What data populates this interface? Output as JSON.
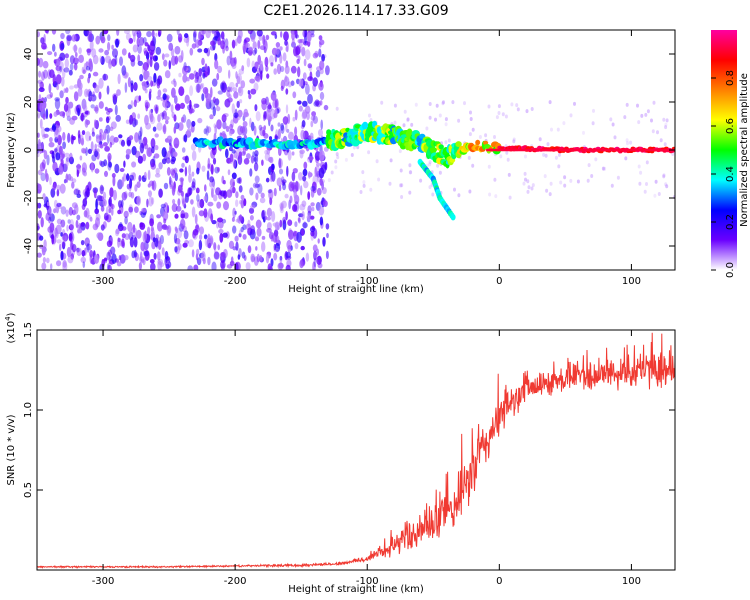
{
  "figure_title": "C2E1.2026.114.17.33.G09",
  "chart_data": [
    {
      "type": "heatmap",
      "title": "C2E1.2026.114.17.33.G09",
      "xlabel": "Height of straight line (km)",
      "ylabel": "Frequency (Hz)",
      "xlim": [
        -350,
        133
      ],
      "ylim": [
        -50,
        50
      ],
      "xticks": [
        -300,
        -200,
        -100,
        0,
        100
      ],
      "yticks": [
        -40,
        -20,
        0,
        20,
        40
      ],
      "colorbar": {
        "label": "Normalized spectral amplitude",
        "range": [
          0.0,
          1.0
        ],
        "ticks": [
          "0.0",
          "0.2",
          "0.4",
          "0.6",
          "0.8"
        ],
        "colors": [
          "#ffffff",
          "#6a00ff",
          "#0000ff",
          "#00ffff",
          "#00ff00",
          "#ffff00",
          "#ff8000",
          "#ff0000",
          "#ff00a0"
        ]
      },
      "features": [
        {
          "name": "broadband noise",
          "x_range": [
            -350,
            -130
          ],
          "freq_range": [
            -50,
            50
          ],
          "amplitude": 0.15
        },
        {
          "name": "meteor head echo track",
          "points": [
            [
              -230,
              3
            ],
            [
              -200,
              3
            ],
            [
              -150,
              2
            ],
            [
              -120,
              5
            ],
            [
              -100,
              8
            ],
            [
              -80,
              6
            ],
            [
              -60,
              3
            ],
            [
              -40,
              -3
            ],
            [
              -20,
              2
            ],
            [
              0,
              1
            ],
            [
              50,
              0
            ],
            [
              133,
              0
            ]
          ],
          "amplitude_range": [
            0.3,
            1.0
          ]
        },
        {
          "name": "descending branch",
          "points": [
            [
              -60,
              -5
            ],
            [
              -50,
              -12
            ],
            [
              -45,
              -20
            ],
            [
              -35,
              -28
            ]
          ],
          "amplitude": 0.3
        }
      ],
      "grid": false
    },
    {
      "type": "line",
      "xlabel": "Height of straight line (km)",
      "ylabel": "SNR (10 * v/v)",
      "y_multiplier": "(x10^4)",
      "y_units_scale": 10000,
      "xlim": [
        -350,
        133
      ],
      "ylim": [
        0,
        1.5
      ],
      "xticks": [
        -300,
        -200,
        -100,
        0,
        100
      ],
      "yticks": [
        0.5,
        1.0,
        1.5
      ],
      "grid": false,
      "series": [
        {
          "color": "#f03a32",
          "x": [
            -350,
            -300,
            -250,
            -200,
            -150,
            -120,
            -100,
            -90,
            -80,
            -70,
            -60,
            -50,
            -40,
            -30,
            -20,
            -10,
            0,
            10,
            20,
            30,
            40,
            50,
            60,
            70,
            80,
            90,
            100,
            110,
            120,
            133
          ],
          "y": [
            0.02,
            0.02,
            0.02,
            0.025,
            0.03,
            0.04,
            0.07,
            0.11,
            0.15,
            0.2,
            0.24,
            0.28,
            0.35,
            0.45,
            0.62,
            0.8,
            0.95,
            1.05,
            1.12,
            1.15,
            1.18,
            1.2,
            1.22,
            1.2,
            1.23,
            1.22,
            1.25,
            1.24,
            1.26,
            1.25
          ],
          "noise": [
            0.005,
            0.005,
            0.005,
            0.005,
            0.008,
            0.01,
            0.02,
            0.04,
            0.06,
            0.08,
            0.1,
            0.12,
            0.14,
            0.16,
            0.18,
            0.16,
            0.12,
            0.1,
            0.08,
            0.08,
            0.08,
            0.09,
            0.09,
            0.1,
            0.1,
            0.1,
            0.11,
            0.11,
            0.11,
            0.11
          ]
        }
      ]
    }
  ]
}
